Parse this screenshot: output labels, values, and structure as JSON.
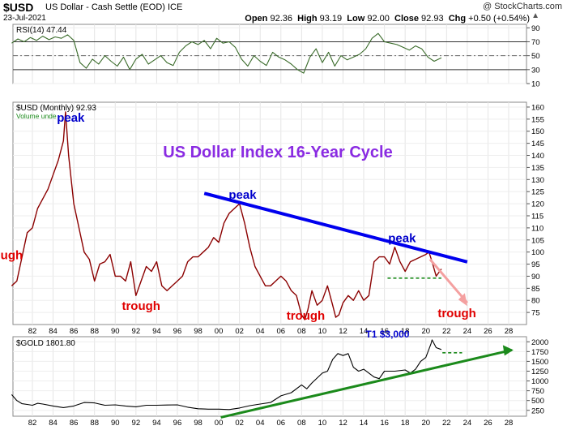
{
  "header": {
    "symbol": "$USD",
    "description": "US Dollar - Cash Settle (EOD)  ICE",
    "date": "23-Jul-2021",
    "brand": "@ StockCharts.com",
    "open_label": "Open",
    "open": "92.36",
    "high_label": "High",
    "high": "93.19",
    "low_label": "Low",
    "low": "92.00",
    "close_label": "Close",
    "close": "92.93",
    "chg_label": "Chg",
    "chg": "+0.50 (+0.54%)",
    "updown": "▲"
  },
  "rsi_panel": {
    "label": "RSI(14) 47.44",
    "ticks": [
      10,
      30,
      50,
      70,
      90
    ],
    "levels": [
      30,
      50,
      70
    ],
    "color": "#3a6b2a"
  },
  "usd_panel": {
    "label": "$USD (Monthly) 92.93",
    "sublabel": "Volume unde",
    "ticks": [
      75,
      80,
      85,
      90,
      95,
      100,
      105,
      110,
      115,
      120,
      125,
      130,
      135,
      140,
      145,
      150,
      155,
      160
    ],
    "title": "US Dollar Index 16-Year Cycle",
    "title_color": "#8a2be2",
    "line_color": "#8b0000",
    "annotations": [
      {
        "text": "peak",
        "color": "#0000cc",
        "x": 1985.7,
        "y": 154
      },
      {
        "text": "peak",
        "color": "#0000cc",
        "x": 2002.3,
        "y": 122
      },
      {
        "text": "peak",
        "color": "#0000cc",
        "x": 2017.7,
        "y": 104
      },
      {
        "text": "ugh",
        "color": "#e00000",
        "x": 1980.0,
        "y": 97
      },
      {
        "text": "trough",
        "color": "#e00000",
        "x": 1992.5,
        "y": 76
      },
      {
        "text": "trough",
        "color": "#e00000",
        "x": 2008.4,
        "y": 72
      },
      {
        "text": "trough",
        "color": "#e00000",
        "x": 2023.0,
        "y": 73
      }
    ],
    "trendline": {
      "color": "#0000ee",
      "from": [
        1998.6,
        124.3
      ],
      "to": [
        2024.0,
        95.9
      ]
    },
    "support": {
      "color": "#1b8a1b",
      "from": [
        2016.3,
        89.2
      ],
      "to": [
        2021.5,
        89.2
      ]
    },
    "projection": {
      "color": "#f4a0a0",
      "from": [
        2020.4,
        97.0
      ],
      "to": [
        2024.0,
        79.0
      ]
    }
  },
  "gold_panel": {
    "label": "$GOLD 1801.80",
    "ticks": [
      250,
      500,
      750,
      1000,
      1250,
      1500,
      1750,
      2000
    ],
    "annotation": {
      "text": "T1 $3,000",
      "color": "#0000cc",
      "x": 2016.3,
      "y": 2130
    },
    "resistance": {
      "color": "#1b8a1b",
      "from": [
        2021.6,
        1720
      ],
      "to": [
        2023.5,
        1720
      ]
    },
    "trendline": {
      "color": "#1b8a1b",
      "from": [
        2000.2,
        70
      ],
      "to": [
        2028.3,
        1790
      ]
    }
  },
  "x_axis": {
    "labels": [
      "82",
      "84",
      "86",
      "88",
      "90",
      "92",
      "94",
      "96",
      "98",
      "00",
      "02",
      "04",
      "06",
      "08",
      "10",
      "12",
      "14",
      "16",
      "18",
      "20",
      "22",
      "24",
      "26",
      "28"
    ],
    "years": [
      1982,
      1984,
      1986,
      1988,
      1990,
      1992,
      1994,
      1996,
      1998,
      2000,
      2002,
      2004,
      2006,
      2008,
      2010,
      2012,
      2014,
      2016,
      2018,
      2020,
      2022,
      2024,
      2026,
      2028
    ]
  },
  "chart_data": [
    {
      "type": "line",
      "title": "RSI(14) 47.44",
      "x": [
        1980.0,
        1980.6,
        1981.2,
        1981.8,
        1982.4,
        1983.0,
        1983.6,
        1984.2,
        1984.8,
        1985.4,
        1986.0,
        1986.6,
        1987.2,
        1987.8,
        1988.4,
        1989.0,
        1989.6,
        1990.2,
        1990.8,
        1991.4,
        1992.0,
        1992.6,
        1993.2,
        1993.8,
        1994.4,
        1995.0,
        1995.6,
        1996.2,
        1996.8,
        1997.4,
        1998.0,
        1998.6,
        1999.2,
        1999.8,
        2000.4,
        2001.0,
        2001.6,
        2002.2,
        2002.8,
        2003.4,
        2004.0,
        2004.6,
        2005.2,
        2005.8,
        2006.4,
        2007.0,
        2007.6,
        2008.2,
        2008.8,
        2009.4,
        2010.0,
        2010.6,
        2011.2,
        2011.8,
        2012.4,
        2013.0,
        2013.6,
        2014.2,
        2014.8,
        2015.4,
        2016.0,
        2016.6,
        2017.2,
        2017.8,
        2018.4,
        2019.0,
        2019.6,
        2020.2,
        2020.8,
        2021.5
      ],
      "values": [
        68,
        74,
        70,
        76,
        72,
        78,
        73,
        77,
        75,
        80,
        72,
        40,
        32,
        45,
        38,
        50,
        42,
        35,
        48,
        30,
        45,
        52,
        38,
        44,
        50,
        40,
        36,
        55,
        64,
        70,
        66,
        72,
        60,
        75,
        68,
        70,
        62,
        45,
        35,
        50,
        42,
        36,
        55,
        48,
        44,
        38,
        30,
        25,
        48,
        60,
        40,
        55,
        35,
        50,
        44,
        48,
        52,
        60,
        75,
        82,
        70,
        68,
        66,
        62,
        58,
        64,
        60,
        48,
        42,
        47
      ],
      "ylim": [
        10,
        95
      ]
    },
    {
      "type": "line",
      "title": "$USD (Monthly) 92.93",
      "x": [
        1980.0,
        1980.5,
        1981.0,
        1981.5,
        1982.0,
        1982.5,
        1983.0,
        1983.5,
        1984.0,
        1984.5,
        1985.0,
        1985.2,
        1985.5,
        1986.0,
        1986.5,
        1987.0,
        1987.5,
        1988.0,
        1988.5,
        1989.0,
        1989.5,
        1990.0,
        1990.5,
        1991.0,
        1991.5,
        1992.0,
        1992.5,
        1993.0,
        1993.5,
        1994.0,
        1994.5,
        1995.0,
        1995.5,
        1996.0,
        1996.5,
        1997.0,
        1997.5,
        1998.0,
        1998.5,
        1999.0,
        1999.5,
        2000.0,
        2000.5,
        2001.0,
        2001.5,
        2002.0,
        2002.5,
        2003.0,
        2003.5,
        2004.0,
        2004.5,
        2005.0,
        2005.5,
        2006.0,
        2006.5,
        2007.0,
        2007.5,
        2008.0,
        2008.3,
        2008.6,
        2009.0,
        2009.5,
        2010.0,
        2010.5,
        2011.0,
        2011.3,
        2011.6,
        2012.0,
        2012.5,
        2013.0,
        2013.5,
        2014.0,
        2014.5,
        2015.0,
        2015.5,
        2016.0,
        2016.5,
        2017.0,
        2017.5,
        2018.0,
        2018.5,
        2019.0,
        2019.5,
        2020.0,
        2020.3,
        2020.6,
        2021.0,
        2021.5
      ],
      "values": [
        86,
        88,
        98,
        108,
        110,
        118,
        122,
        126,
        132,
        138,
        146,
        158,
        140,
        120,
        110,
        100,
        97,
        88,
        95,
        96,
        99,
        90,
        90,
        88,
        96,
        82,
        88,
        94,
        92,
        96,
        86,
        84,
        86,
        88,
        90,
        96,
        98,
        98,
        100,
        102,
        106,
        104,
        112,
        116,
        118,
        120,
        112,
        102,
        94,
        90,
        86,
        86,
        88,
        90,
        88,
        84,
        82,
        74,
        72,
        76,
        84,
        78,
        80,
        86,
        78,
        73,
        74,
        79,
        82,
        80,
        84,
        80,
        82,
        96,
        98,
        98,
        95,
        102,
        96,
        92,
        96,
        97,
        98,
        99,
        100,
        96,
        90,
        93
      ],
      "ylim": [
        70,
        162
      ]
    },
    {
      "type": "line",
      "title": "$GOLD 1801.80",
      "x": [
        1980.0,
        1980.5,
        1981.0,
        1981.5,
        1982.0,
        1982.5,
        1983.0,
        1984.0,
        1985.0,
        1986.0,
        1987.0,
        1988.0,
        1989.0,
        1990.0,
        1991.0,
        1992.0,
        1993.0,
        1994.0,
        1995.0,
        1996.0,
        1997.0,
        1998.0,
        1999.0,
        2000.0,
        2001.0,
        2002.0,
        2003.0,
        2004.0,
        2005.0,
        2006.0,
        2007.0,
        2008.0,
        2008.5,
        2009.0,
        2010.0,
        2010.5,
        2011.0,
        2011.5,
        2012.0,
        2012.5,
        2013.0,
        2013.5,
        2014.0,
        2015.0,
        2015.5,
        2016.0,
        2017.0,
        2018.0,
        2018.5,
        2019.0,
        2019.5,
        2020.0,
        2020.5,
        2020.6,
        2021.0,
        2021.5
      ],
      "values": [
        650,
        500,
        420,
        400,
        380,
        430,
        410,
        360,
        320,
        360,
        450,
        440,
        380,
        390,
        360,
        340,
        380,
        380,
        385,
        390,
        330,
        290,
        280,
        280,
        270,
        310,
        370,
        410,
        450,
        620,
        700,
        900,
        800,
        950,
        1200,
        1250,
        1550,
        1700,
        1650,
        1700,
        1350,
        1250,
        1300,
        1100,
        1060,
        1250,
        1250,
        1280,
        1200,
        1300,
        1500,
        1600,
        1950,
        2050,
        1850,
        1802
      ],
      "ylim": [
        100,
        2130
      ]
    }
  ]
}
